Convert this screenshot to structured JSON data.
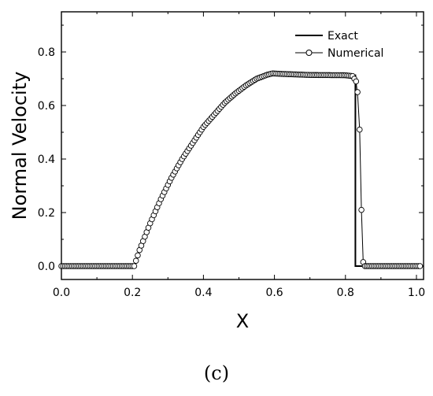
{
  "caption": "(c)",
  "chart_data": {
    "type": "line",
    "title": "",
    "xlabel": "X",
    "ylabel": "Normal Velocity",
    "xlim": [
      0.0,
      1.02
    ],
    "ylim": [
      -0.05,
      0.95
    ],
    "xticks": [
      0.0,
      0.2,
      0.4,
      0.6,
      0.8,
      1.0
    ],
    "yticks": [
      0.0,
      0.2,
      0.4,
      0.6,
      0.8
    ],
    "xtick_labels": [
      "0.0",
      "0.2",
      "0.4",
      "0.6",
      "0.8",
      "1.0"
    ],
    "ytick_labels": [
      "0.0",
      "0.2",
      "0.4",
      "0.6",
      "0.8"
    ],
    "legend": {
      "position": "top-right"
    },
    "grid": false,
    "series": [
      {
        "name": "Exact",
        "style": "solid",
        "color": "#000000",
        "x": [
          0.0,
          0.205,
          0.22,
          0.25,
          0.28,
          0.31,
          0.34,
          0.37,
          0.4,
          0.43,
          0.46,
          0.49,
          0.52,
          0.55,
          0.58,
          0.595,
          0.62,
          0.7,
          0.8,
          0.828,
          0.828,
          1.02
        ],
        "y": [
          0.0,
          0.0,
          0.06,
          0.16,
          0.25,
          0.33,
          0.4,
          0.46,
          0.52,
          0.565,
          0.61,
          0.645,
          0.675,
          0.7,
          0.715,
          0.72,
          0.718,
          0.714,
          0.713,
          0.713,
          0.0,
          0.0
        ]
      },
      {
        "name": "Numerical",
        "style": "line-circle",
        "color": "#000000",
        "x": [
          0.0,
          0.205,
          0.22,
          0.25,
          0.28,
          0.31,
          0.34,
          0.37,
          0.4,
          0.43,
          0.46,
          0.49,
          0.52,
          0.55,
          0.58,
          0.595,
          0.62,
          0.7,
          0.8,
          0.82,
          0.83,
          0.834,
          0.84,
          0.845,
          0.85,
          0.855,
          1.02
        ],
        "y": [
          0.0,
          0.0,
          0.06,
          0.16,
          0.25,
          0.33,
          0.4,
          0.46,
          0.52,
          0.565,
          0.61,
          0.645,
          0.675,
          0.7,
          0.715,
          0.72,
          0.718,
          0.714,
          0.713,
          0.71,
          0.69,
          0.65,
          0.51,
          0.21,
          0.015,
          0.0,
          0.0
        ]
      }
    ]
  }
}
